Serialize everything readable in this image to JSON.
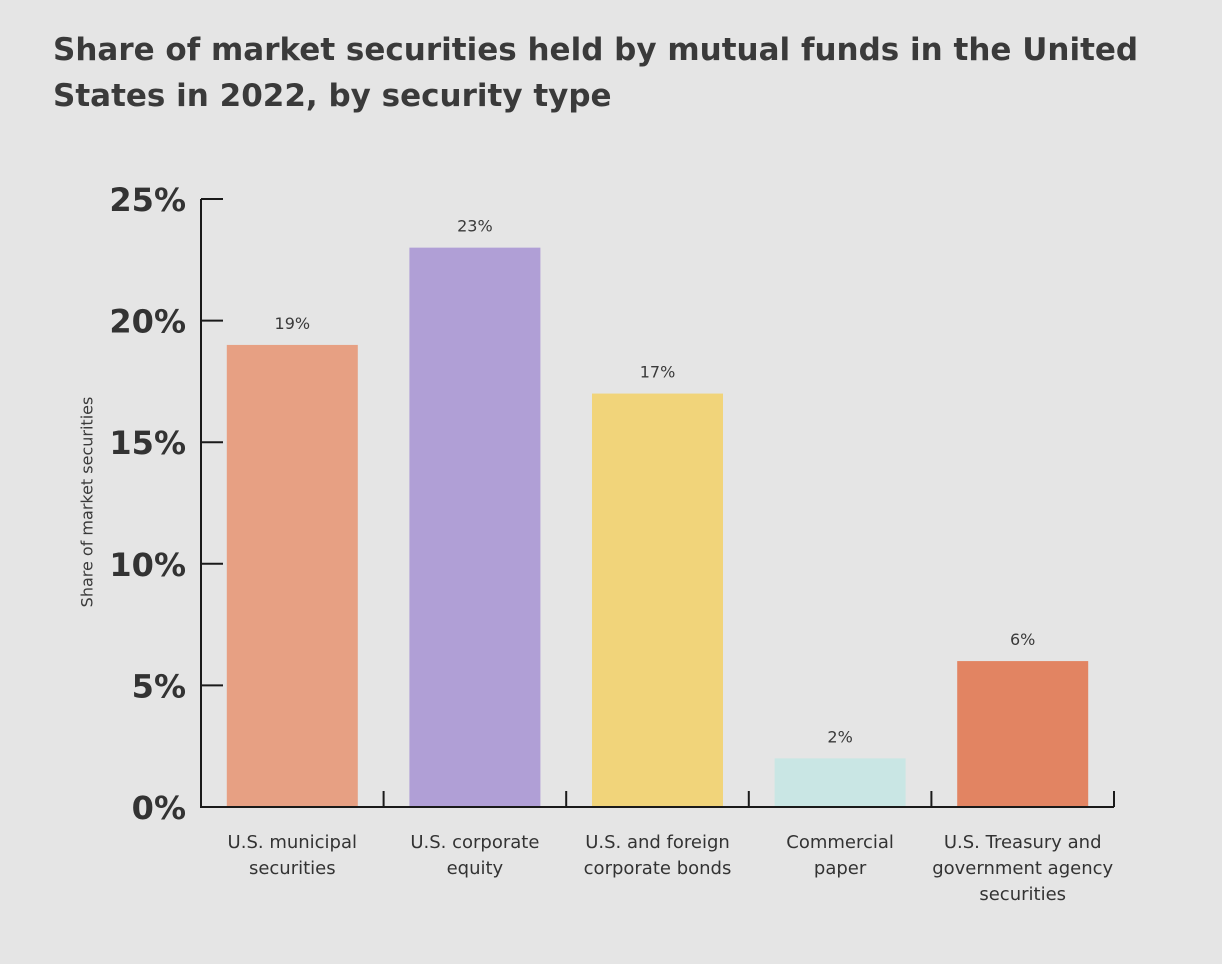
{
  "chart_data": {
    "type": "bar",
    "title": "Share of market securities held by mutual funds in the United States in 2022, by security type",
    "xlabel": "",
    "ylabel": "Share of market securities",
    "ylim": [
      0,
      25
    ],
    "yticks": [
      0,
      5,
      10,
      15,
      20,
      25
    ],
    "ytick_labels": [
      "0%",
      "5%",
      "10%",
      "15%",
      "20%",
      "25%"
    ],
    "categories": [
      [
        "U.S. municipal",
        "securities"
      ],
      [
        "U.S. corporate",
        "equity"
      ],
      [
        "U.S. and foreign",
        "corporate bonds"
      ],
      [
        "Commercial",
        "paper"
      ],
      [
        "U.S. Treasury and",
        "government agency",
        "securities"
      ]
    ],
    "values": [
      19,
      23,
      17,
      2,
      6
    ],
    "data_labels": [
      "19%",
      "23%",
      "17%",
      "2%",
      "6%"
    ],
    "colors": [
      "#e7a083",
      "#b09fd6",
      "#f1d47a",
      "#c9e6e4",
      "#e28462"
    ],
    "grid": false,
    "legend": "none"
  }
}
